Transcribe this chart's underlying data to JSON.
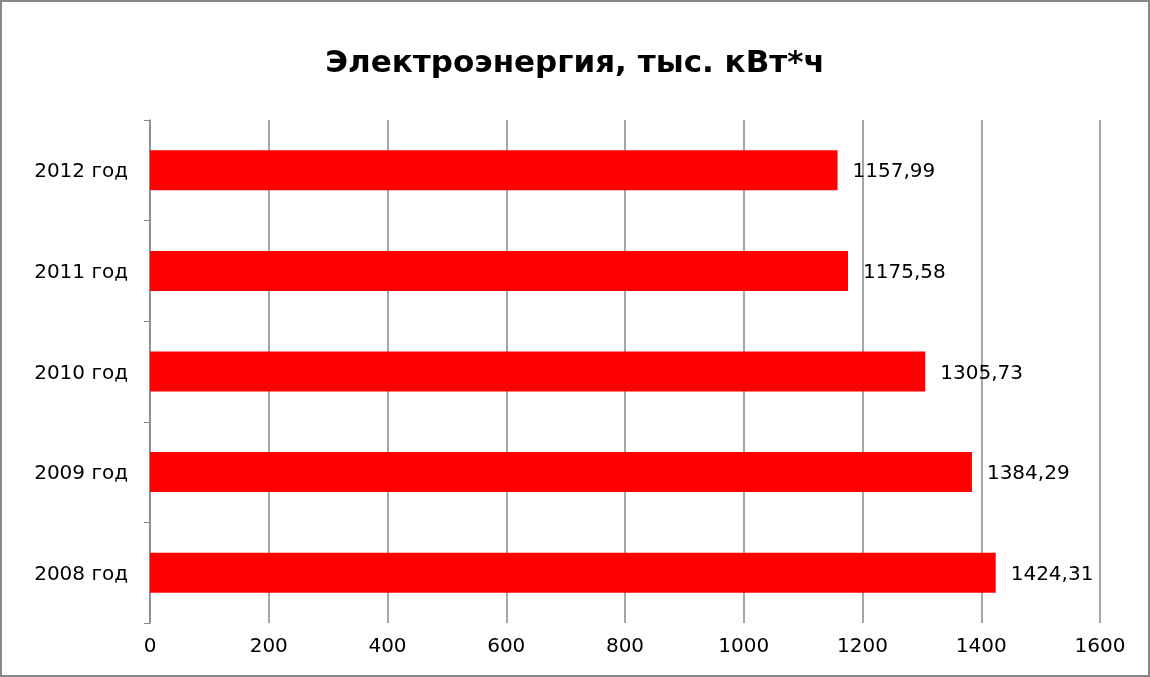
{
  "chart_data": {
    "type": "bar",
    "orientation": "horizontal",
    "title": "Электроэнергия, тыс. кВт*ч",
    "categories": [
      "2012 год",
      "2011 год",
      "2010 год",
      "2009 год",
      "2008 год"
    ],
    "values": [
      1157.99,
      1175.58,
      1305.73,
      1384.29,
      1424.31
    ],
    "value_labels": [
      "1157,99",
      "1175,58",
      "1305,73",
      "1384,29",
      "1424,31"
    ],
    "color": "#ff0000",
    "xlim": [
      0,
      1600
    ],
    "xticks": [
      0,
      200,
      400,
      600,
      800,
      1000,
      1200,
      1400,
      1600
    ],
    "grid": "x"
  }
}
